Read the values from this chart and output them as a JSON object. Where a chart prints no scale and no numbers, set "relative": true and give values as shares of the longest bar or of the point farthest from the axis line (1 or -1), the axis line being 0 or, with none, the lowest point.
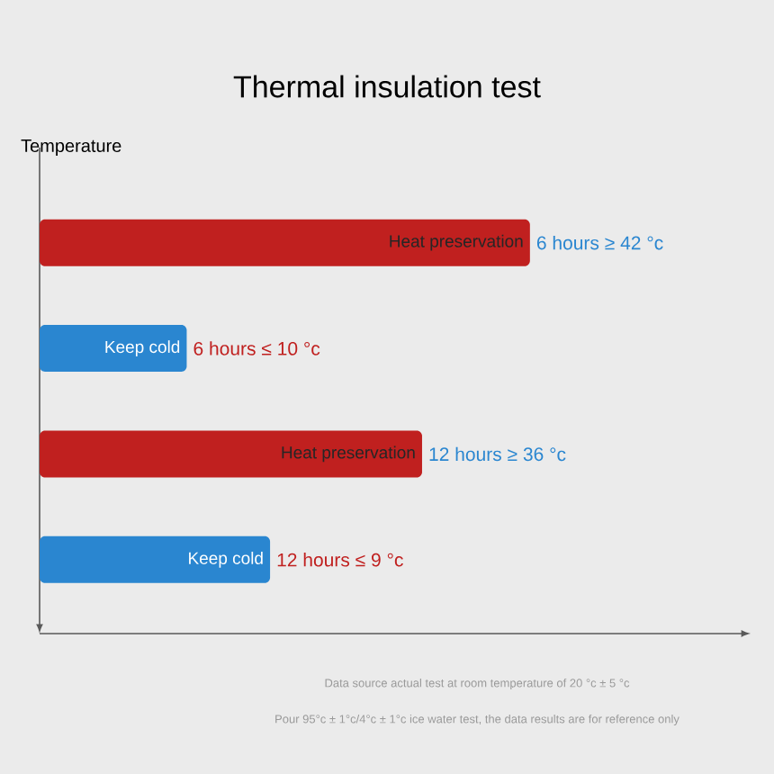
{
  "chart_data": {
    "type": "bar",
    "orientation": "horizontal",
    "relative": true,
    "title": "Thermal insulation test",
    "ylabel": "Temperature",
    "categories": [
      "Heat preservation",
      "Keep cold",
      "Heat preservation",
      "Keep cold"
    ],
    "values": [
      1,
      0.3,
      0.78,
      0.47
    ],
    "colors": [
      "#c0201f",
      "#2a86d0",
      "#c0201f",
      "#2a86d0"
    ],
    "annotations": [
      {
        "text": "6 hours ≥ 42 °c",
        "x": 1
      },
      {
        "text": "6 hours ≤ 10 °c",
        "x": 0.3
      },
      {
        "text": "12 hours ≥ 36 °c",
        "x": 0.78
      },
      {
        "text": "12 hours ≤ 9 °c",
        "x": 0.47
      },
      "Data source actual test at room temperature of 20 °c ± 5 °c",
      "Pour 95°c ± 1°c/4°c ± 1°c ice water test, the data results are for reference only"
    ]
  }
}
